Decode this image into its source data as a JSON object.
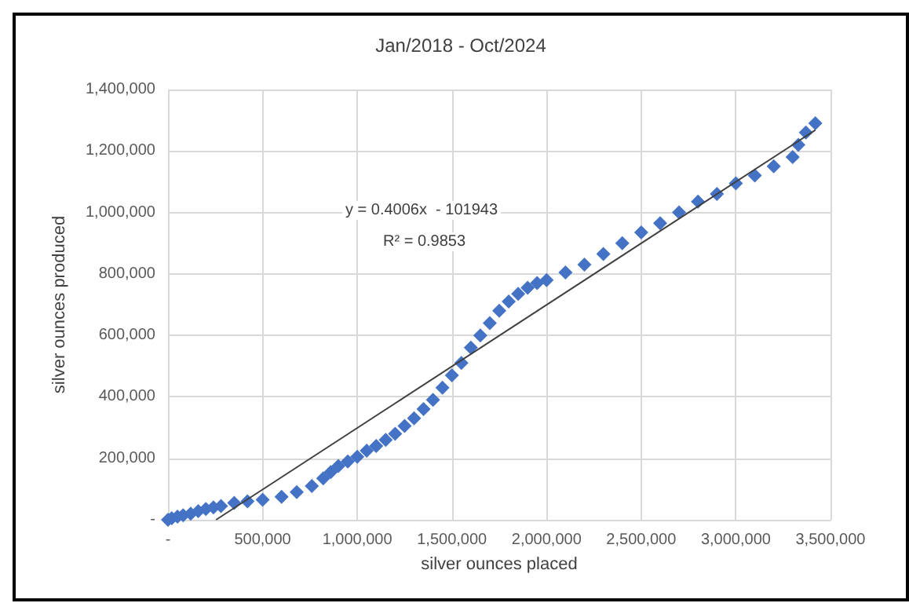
{
  "chart_data": {
    "type": "scatter",
    "title": "Jan/2018 - Oct/2024",
    "xlabel": "silver ounces placed",
    "ylabel": "silver ounces produced",
    "xlim": [
      0,
      3500000
    ],
    "xticks": [
      {
        "value": 0,
        "label": "-"
      },
      {
        "value": 500000,
        "label": "500,000"
      },
      {
        "value": 1000000,
        "label": "1,000,000"
      },
      {
        "value": 1500000,
        "label": "1,500,000"
      },
      {
        "value": 2000000,
        "label": "2,000,000"
      },
      {
        "value": 2500000,
        "label": "2,500,000"
      },
      {
        "value": 3000000,
        "label": "3,000,000"
      },
      {
        "value": 3500000,
        "label": "3,500,000"
      }
    ],
    "ylim": [
      0,
      1400000
    ],
    "yticks": [
      {
        "value": 0,
        "label": "-"
      },
      {
        "value": 200000,
        "label": "200,000"
      },
      {
        "value": 400000,
        "label": "400,000"
      },
      {
        "value": 600000,
        "label": "600,000"
      },
      {
        "value": 800000,
        "label": "800,000"
      },
      {
        "value": 1000000,
        "label": "1,000,000"
      },
      {
        "value": 1200000,
        "label": "1,200,000"
      },
      {
        "value": 1400000,
        "label": "1,400,000"
      }
    ],
    "grid": true,
    "marker": "diamond",
    "series": [
      {
        "color": "#4472c4",
        "x": [
          0,
          20000,
          50000,
          80000,
          120000,
          160000,
          200000,
          240000,
          280000,
          350000,
          420000,
          500000,
          600000,
          680000,
          760000,
          820000,
          860000,
          900000,
          950000,
          1000000,
          1050000,
          1100000,
          1150000,
          1200000,
          1250000,
          1300000,
          1350000,
          1400000,
          1450000,
          1500000,
          1550000,
          1600000,
          1650000,
          1700000,
          1750000,
          1800000,
          1850000,
          1900000,
          1950000,
          2000000,
          2100000,
          2200000,
          2300000,
          2400000,
          2500000,
          2600000,
          2700000,
          2800000,
          2900000,
          3000000,
          3100000,
          3200000,
          3300000,
          3330000,
          3370000,
          3420000
        ],
        "values": [
          0,
          5000,
          10000,
          15000,
          20000,
          28000,
          35000,
          40000,
          45000,
          55000,
          60000,
          65000,
          75000,
          90000,
          110000,
          135000,
          155000,
          175000,
          190000,
          205000,
          225000,
          240000,
          260000,
          280000,
          305000,
          330000,
          360000,
          390000,
          430000,
          470000,
          510000,
          560000,
          600000,
          640000,
          680000,
          710000,
          735000,
          755000,
          770000,
          780000,
          805000,
          830000,
          865000,
          900000,
          935000,
          965000,
          1000000,
          1035000,
          1060000,
          1095000,
          1120000,
          1150000,
          1180000,
          1220000,
          1260000,
          1290000
        ]
      },
      {
        "type": "line",
        "color": "#404040",
        "marker": "none",
        "x": [
          254000,
          3420000
        ],
        "values": [
          0,
          1268000
        ]
      }
    ],
    "annotations": [
      "y = 0.4006x  - 101943",
      "R² = 0.9853"
    ]
  }
}
